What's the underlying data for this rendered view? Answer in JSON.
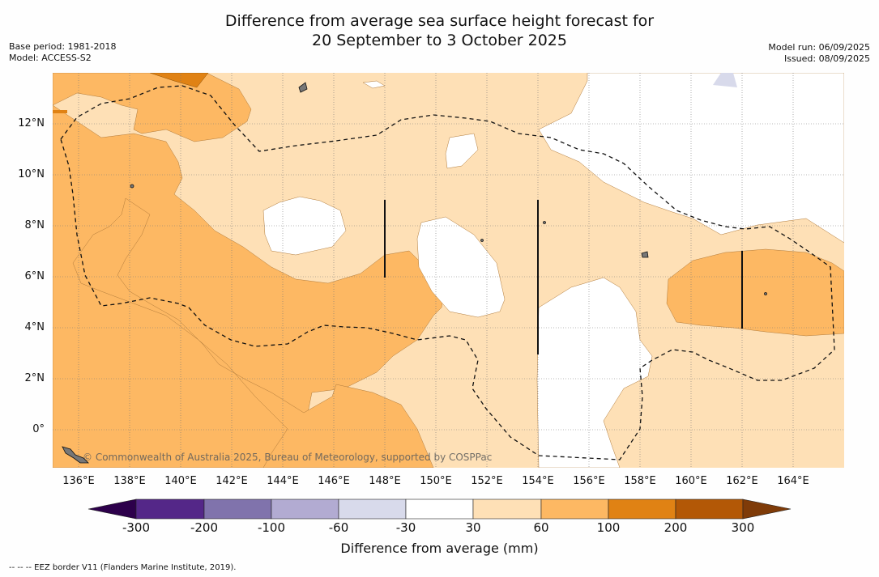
{
  "title": {
    "line1": "Difference from average sea surface height forecast for",
    "line2": "20 September to 3 October 2025"
  },
  "meta_left": {
    "base_period": "Base period: 1981-2018",
    "model": "Model: ACCESS-S2"
  },
  "meta_right": {
    "model_run": "Model run: 06/09/2025",
    "issued": "Issued: 08/09/2025"
  },
  "map": {
    "lat_labels": [
      "12°N",
      "10°N",
      "8°N",
      "6°N",
      "4°N",
      "2°N",
      "0°"
    ],
    "lon_labels": [
      "136°E",
      "138°E",
      "140°E",
      "142°E",
      "144°E",
      "146°E",
      "148°E",
      "150°E",
      "152°E",
      "154°E",
      "156°E",
      "158°E",
      "160°E",
      "162°E",
      "164°E"
    ],
    "watermark": "© Commonwealth of Australia 2025, Bureau of Meteorology, supported by COSPPac"
  },
  "colorbar": {
    "title": "Difference from average (mm)",
    "ticks": [
      "-300",
      "-200",
      "-100",
      "-60",
      "-30",
      "30",
      "60",
      "100",
      "200",
      "300"
    ],
    "colors": {
      "below_min": "#2d004b",
      "b1": "#542788",
      "b2": "#8073ac",
      "b3": "#b2abd2",
      "b4": "#d8daeb",
      "b5": "#ffffff",
      "b6": "#fee0b6",
      "b7": "#fdb863",
      "b8": "#e08214",
      "b9": "#b35806",
      "above_max": "#7f3b08"
    }
  },
  "footnote": "-- -- -- EEZ border V11 (Flanders Marine Institute, 2019)."
}
